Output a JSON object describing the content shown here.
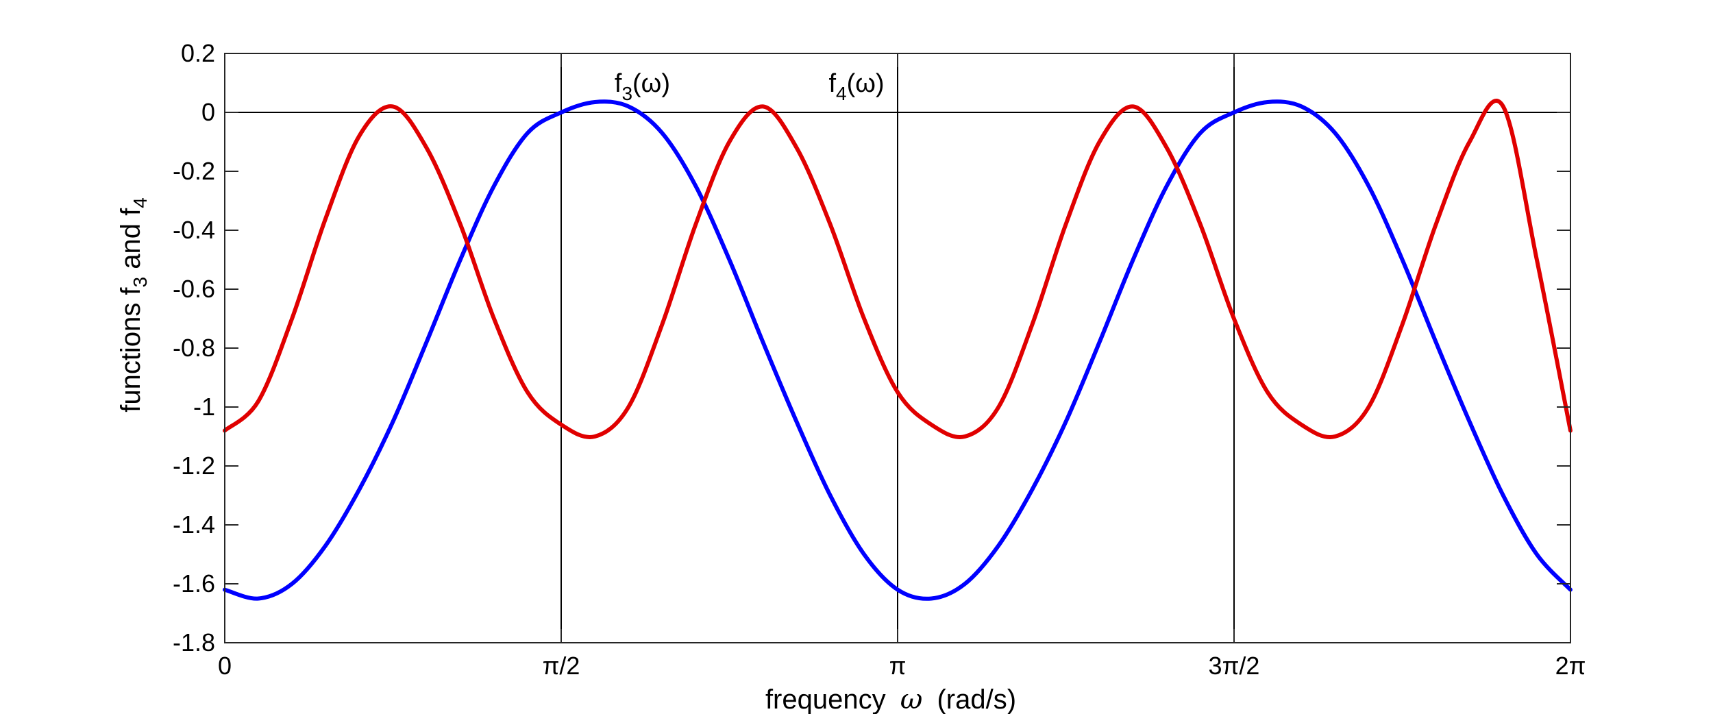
{
  "chart_data": {
    "type": "line",
    "xlabel": {
      "text": "frequency",
      "symbol": "ω",
      "unit": "(rad/s)"
    },
    "ylabel": {
      "pre": "functions f",
      "sub1": "3",
      "mid": " and f",
      "sub2": "4"
    },
    "xlim": [
      0,
      6.283185307
    ],
    "ylim": [
      -1.8,
      0.2
    ],
    "xticks": [
      {
        "value": 0,
        "label": "0"
      },
      {
        "value": 1.570796327,
        "label": "π/2"
      },
      {
        "value": 3.141592654,
        "label": "π"
      },
      {
        "value": 4.71238898,
        "label": "3π/2"
      },
      {
        "value": 6.283185307,
        "label": "2π"
      }
    ],
    "yticks": [
      {
        "value": 0.2,
        "label": "0.2"
      },
      {
        "value": 0,
        "label": "0"
      },
      {
        "value": -0.2,
        "label": "-0.2"
      },
      {
        "value": -0.4,
        "label": "-0.4"
      },
      {
        "value": -0.6,
        "label": "-0.6"
      },
      {
        "value": -0.8,
        "label": "-0.8"
      },
      {
        "value": -1,
        "label": "-1"
      },
      {
        "value": -1.2,
        "label": "-1.2"
      },
      {
        "value": -1.4,
        "label": "-1.4"
      },
      {
        "value": -1.6,
        "label": "-1.6"
      },
      {
        "value": -1.8,
        "label": "-1.8"
      }
    ],
    "grid": false,
    "reference_lines": {
      "horizontal": [
        0
      ],
      "vertical": [
        1.570796327,
        3.141592654,
        4.71238898
      ]
    },
    "series": [
      {
        "color": "#0000FF",
        "x": [
          0,
          0.157,
          0.314,
          0.471,
          0.628,
          0.785,
          0.942,
          1.1,
          1.257,
          1.414,
          1.571,
          1.728,
          1.885,
          2.042,
          2.199,
          2.356,
          2.513,
          2.67,
          2.827,
          2.985,
          3.142,
          3.299,
          3.456,
          3.613,
          3.77,
          3.927,
          4.084,
          4.241,
          4.398,
          4.555,
          4.712,
          4.869,
          5.027,
          5.184,
          5.341,
          5.498,
          5.655,
          5.812,
          5.969,
          6.126,
          6.283
        ],
        "y": [
          -1.62,
          -1.65,
          -1.6,
          -1.47,
          -1.28,
          -1.05,
          -0.78,
          -0.5,
          -0.25,
          -0.07,
          0.0,
          0.035,
          0.02,
          -0.07,
          -0.25,
          -0.5,
          -0.78,
          -1.05,
          -1.3,
          -1.5,
          -1.62,
          -1.65,
          -1.6,
          -1.47,
          -1.28,
          -1.05,
          -0.78,
          -0.5,
          -0.25,
          -0.07,
          0.0,
          0.035,
          0.02,
          -0.07,
          -0.25,
          -0.5,
          -0.78,
          -1.05,
          -1.3,
          -1.5,
          -1.62
        ]
      },
      {
        "color": "#E00000",
        "x": [
          0,
          0.157,
          0.314,
          0.471,
          0.628,
          0.785,
          0.942,
          1.1,
          1.257,
          1.414,
          1.571,
          1.728,
          1.885,
          2.042,
          2.199,
          2.356,
          2.513,
          2.67,
          2.827,
          2.985,
          3.142,
          3.299,
          3.456,
          3.613,
          3.77,
          3.927,
          4.084,
          4.241,
          4.398,
          4.555,
          4.712,
          4.869,
          5.027,
          5.184,
          5.341,
          5.498,
          5.655,
          5.812,
          5.969,
          6.126,
          6.283
        ],
        "y": [
          -1.08,
          -0.98,
          -0.7,
          -0.36,
          -0.08,
          0.02,
          -0.12,
          -0.38,
          -0.7,
          -0.95,
          -1.06,
          -1.1,
          -1.0,
          -0.72,
          -0.38,
          -0.1,
          0.02,
          -0.12,
          -0.38,
          -0.7,
          -0.95,
          -1.06,
          -1.1,
          -1.0,
          -0.72,
          -0.38,
          -0.1,
          0.02,
          -0.12,
          -0.38,
          -0.7,
          -0.95,
          -1.06,
          -1.1,
          -1.0,
          -0.72,
          -0.38,
          -0.1,
          0.02,
          -0.5,
          -1.08
        ]
      }
    ],
    "annotations": [
      {
        "pre": "f",
        "sub": "3",
        "post": "(ω)",
        "x": 1.82,
        "y": 0.07
      },
      {
        "pre": "f",
        "sub": "4",
        "post": "(ω)",
        "x": 2.82,
        "y": 0.07
      }
    ]
  }
}
